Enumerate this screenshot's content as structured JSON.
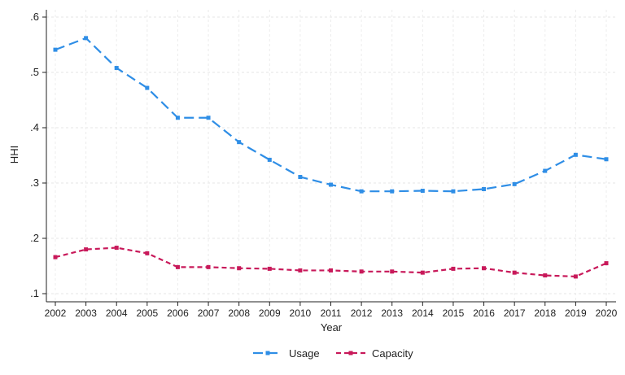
{
  "chart_data": {
    "type": "line",
    "xlabel": "Year",
    "ylabel": "HHI",
    "x": [
      2002,
      2003,
      2004,
      2005,
      2006,
      2007,
      2008,
      2009,
      2010,
      2011,
      2012,
      2013,
      2014,
      2015,
      2016,
      2017,
      2018,
      2019,
      2020
    ],
    "xlim": [
      2002,
      2020
    ],
    "ylim": [
      0.1,
      0.6
    ],
    "yticks": [
      0.1,
      0.2,
      0.3,
      0.4,
      0.5,
      0.6
    ],
    "ytick_labels": [
      ".1",
      ".2",
      ".3",
      ".4",
      ".5",
      ".6"
    ],
    "grid": true,
    "legend_position": "bottom-center",
    "series": [
      {
        "name": "Usage",
        "color": "#2f8ee6",
        "dash": "long-dash",
        "values": [
          0.541,
          0.562,
          0.508,
          0.472,
          0.418,
          0.418,
          0.374,
          0.342,
          0.311,
          0.297,
          0.285,
          0.285,
          0.286,
          0.285,
          0.289,
          0.298,
          0.322,
          0.351,
          0.343
        ]
      },
      {
        "name": "Capacity",
        "color": "#c8195a",
        "dash": "short-dash",
        "values": [
          0.166,
          0.18,
          0.183,
          0.173,
          0.148,
          0.148,
          0.146,
          0.145,
          0.142,
          0.142,
          0.14,
          0.14,
          0.138,
          0.145,
          0.146,
          0.138,
          0.133,
          0.131,
          0.155
        ]
      }
    ]
  }
}
